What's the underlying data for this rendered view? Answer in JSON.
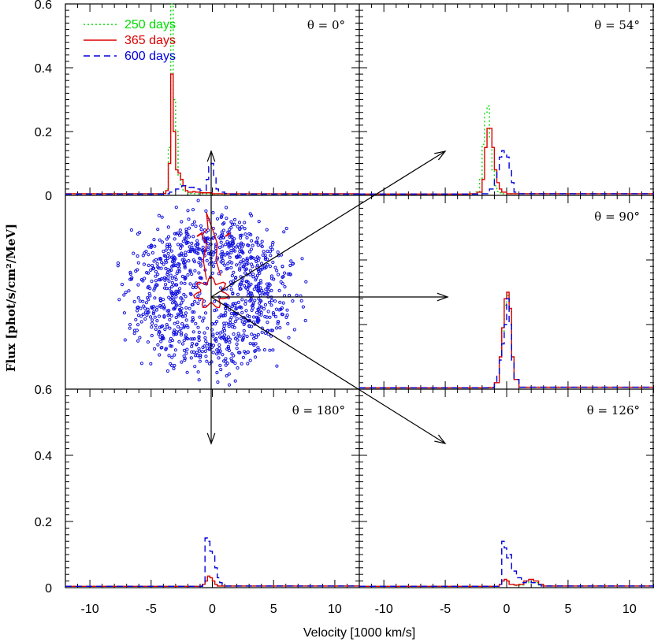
{
  "chart_data": {
    "type": "line",
    "xlabel": "Velocity [1000 km/s]",
    "ylabel": "Flux [phot/s/cm²/MeV]",
    "xlim": [
      -12,
      12
    ],
    "ylim": [
      0,
      0.6
    ],
    "x_ticks": [
      -10,
      -5,
      0,
      5,
      10
    ],
    "y_ticks": [
      0,
      0.2,
      0.4,
      0.6
    ],
    "x_tick_labels": [
      "-10",
      "-5",
      "0",
      "5",
      "10"
    ],
    "y_tick_labels": [
      "0",
      "0.2",
      "0.4",
      "0.6"
    ],
    "legend": [
      {
        "name": "250 days",
        "color": "#00dd00",
        "dash": "dotted"
      },
      {
        "name": "365 days",
        "color": "#dd0000",
        "dash": "solid"
      },
      {
        "name": "600 days",
        "color": "#0000dd",
        "dash": "dashed"
      }
    ],
    "panels": [
      {
        "id": "top-left",
        "angle_label": "θ = 0°",
        "series": [
          {
            "name": "250 days",
            "x": [
              -12,
              -4,
              -3.8,
              -3.6,
              -3.4,
              -3.2,
              -3.0,
              -2.8,
              -2.6,
              -2.4,
              -2.2,
              -2.0,
              -1.8,
              -1.6,
              -1.4,
              -1.0,
              0,
              12
            ],
            "y": [
              0.005,
              0.006,
              0.02,
              0.15,
              0.6,
              0.3,
              0.2,
              0.06,
              0.03,
              0.015,
              0.01,
              0.008,
              0.006,
              0.005,
              0.005,
              0.005,
              0.004,
              0.004
            ]
          },
          {
            "name": "365 days",
            "x": [
              -12,
              -4,
              -3.8,
              -3.6,
              -3.4,
              -3.2,
              -3.0,
              -2.8,
              -2.6,
              -2.4,
              -2.2,
              -2.0,
              -1.8,
              -1.6,
              -1.4,
              -1.0,
              0,
              12
            ],
            "y": [
              0.005,
              0.006,
              0.015,
              0.1,
              0.38,
              0.2,
              0.08,
              0.07,
              0.05,
              0.03,
              0.015,
              0.01,
              0.01,
              0.012,
              0.01,
              0.008,
              0.005,
              0.005
            ]
          },
          {
            "name": "600 days",
            "x": [
              -12,
              -4,
              -3.5,
              -3.0,
              -2.5,
              -2.0,
              -1.5,
              -1.0,
              -0.5,
              -0.3,
              -0.1,
              0.1,
              0.3,
              0.5,
              1.0,
              1.5,
              12
            ],
            "y": [
              0.004,
              0.005,
              0.01,
              0.02,
              0.03,
              0.025,
              0.02,
              0.015,
              0.05,
              0.09,
              0.1,
              0.06,
              0.02,
              0.01,
              0.006,
              0.004,
              0.004
            ]
          }
        ]
      },
      {
        "id": "top-right",
        "angle_label": "θ = 54°",
        "series": [
          {
            "name": "250 days",
            "x": [
              -12,
              -3,
              -2.5,
              -2.2,
              -2.0,
              -1.8,
              -1.6,
              -1.4,
              -1.2,
              -1.0,
              -0.8,
              -0.6,
              -0.4,
              12
            ],
            "y": [
              0.004,
              0.005,
              0.01,
              0.05,
              0.16,
              0.26,
              0.28,
              0.18,
              0.08,
              0.03,
              0.012,
              0.008,
              0.005,
              0.004
            ]
          },
          {
            "name": "365 days",
            "x": [
              -12,
              -3,
              -2.4,
              -2.0,
              -1.8,
              -1.6,
              -1.4,
              -1.2,
              -1.0,
              -0.8,
              -0.6,
              -0.4,
              0,
              12
            ],
            "y": [
              0.004,
              0.005,
              0.01,
              0.05,
              0.15,
              0.21,
              0.21,
              0.15,
              0.08,
              0.04,
              0.02,
              0.01,
              0.005,
              0.004
            ]
          },
          {
            "name": "600 days",
            "x": [
              -12,
              -2.0,
              -1.4,
              -1.0,
              -0.8,
              -0.6,
              -0.4,
              -0.2,
              0,
              0.2,
              0.4,
              0.6,
              1.0,
              12
            ],
            "y": [
              0.004,
              0.005,
              0.02,
              0.05,
              0.08,
              0.12,
              0.14,
              0.13,
              0.12,
              0.08,
              0.04,
              0.01,
              0.005,
              0.004
            ]
          }
        ]
      },
      {
        "id": "middle-right",
        "angle_label": "θ = 90°",
        "series": [
          {
            "name": "250 days",
            "x": [
              -12,
              -1.5,
              -1.0,
              -0.6,
              -0.4,
              -0.2,
              0,
              0.2,
              0.4,
              0.6,
              1.0,
              12
            ],
            "y": [
              0.004,
              0.005,
              0.02,
              0.1,
              0.18,
              0.26,
              0.29,
              0.24,
              0.1,
              0.03,
              0.006,
              0.004
            ]
          },
          {
            "name": "365 days",
            "x": [
              -12,
              -1.5,
              -1.0,
              -0.6,
              -0.4,
              -0.2,
              0,
              0.2,
              0.4,
              0.6,
              1.0,
              12
            ],
            "y": [
              0.004,
              0.005,
              0.02,
              0.1,
              0.19,
              0.28,
              0.3,
              0.25,
              0.1,
              0.03,
              0.006,
              0.004
            ]
          },
          {
            "name": "600 days",
            "x": [
              -12,
              -1.5,
              -1.0,
              -0.8,
              -0.6,
              -0.4,
              -0.2,
              0,
              0.2,
              0.4,
              0.6,
              1.0,
              12
            ],
            "y": [
              0.004,
              0.005,
              0.02,
              0.04,
              0.09,
              0.14,
              0.2,
              0.28,
              0.2,
              0.09,
              0.03,
              0.006,
              0.004
            ]
          }
        ]
      },
      {
        "id": "bottom-left",
        "angle_label": "θ = 180°",
        "series": [
          {
            "name": "250 days",
            "x": [
              -12,
              -1.0,
              -0.8,
              -0.6,
              -0.4,
              -0.2,
              0,
              0.2,
              0.4,
              12
            ],
            "y": [
              0.004,
              0.005,
              0.01,
              0.02,
              0.03,
              0.03,
              0.02,
              0.01,
              0.005,
              0.004
            ]
          },
          {
            "name": "365 days",
            "x": [
              -12,
              -1.0,
              -0.8,
              -0.6,
              -0.4,
              -0.2,
              0,
              0.2,
              0.4,
              12
            ],
            "y": [
              0.004,
              0.005,
              0.01,
              0.02,
              0.035,
              0.03,
              0.02,
              0.01,
              0.005,
              0.004
            ]
          },
          {
            "name": "600 days",
            "x": [
              -12,
              -0.8,
              -0.6,
              -0.4,
              -0.2,
              0,
              0.2,
              0.4,
              0.6,
              0.8,
              1.0,
              12
            ],
            "y": [
              0.004,
              0.01,
              0.15,
              0.14,
              0.11,
              0.1,
              0.06,
              0.03,
              0.015,
              0.008,
              0.005,
              0.004
            ]
          }
        ]
      },
      {
        "id": "bottom-right",
        "angle_label": "θ = 126°",
        "series": [
          {
            "name": "250 days",
            "x": [
              -12,
              -0.6,
              -0.4,
              -0.2,
              0,
              0.2,
              0.6,
              1.0,
              1.4,
              1.8,
              2.2,
              2.6,
              3.0,
              12
            ],
            "y": [
              0.004,
              0.01,
              0.02,
              0.025,
              0.02,
              0.01,
              0.006,
              0.008,
              0.015,
              0.02,
              0.015,
              0.008,
              0.005,
              0.004
            ]
          },
          {
            "name": "365 days",
            "x": [
              -12,
              -0.6,
              -0.4,
              -0.2,
              0,
              0.2,
              0.6,
              1.0,
              1.4,
              1.8,
              2.2,
              2.6,
              3.0,
              12
            ],
            "y": [
              0.004,
              0.01,
              0.02,
              0.025,
              0.02,
              0.01,
              0.008,
              0.01,
              0.02,
              0.025,
              0.02,
              0.01,
              0.005,
              0.004
            ]
          },
          {
            "name": "600 days",
            "x": [
              -12,
              -0.6,
              -0.4,
              -0.2,
              0,
              0.2,
              0.4,
              0.8,
              1.2,
              1.6,
              2.0,
              2.4,
              2.8,
              12
            ],
            "y": [
              0.004,
              0.01,
              0.14,
              0.12,
              0.09,
              0.1,
              0.05,
              0.03,
              0.015,
              0.02,
              0.015,
              0.01,
              0.005,
              0.004
            ]
          }
        ]
      }
    ]
  },
  "colors": {
    "green": "#00dd00",
    "red": "#dd0000",
    "blue": "#0000dd"
  }
}
